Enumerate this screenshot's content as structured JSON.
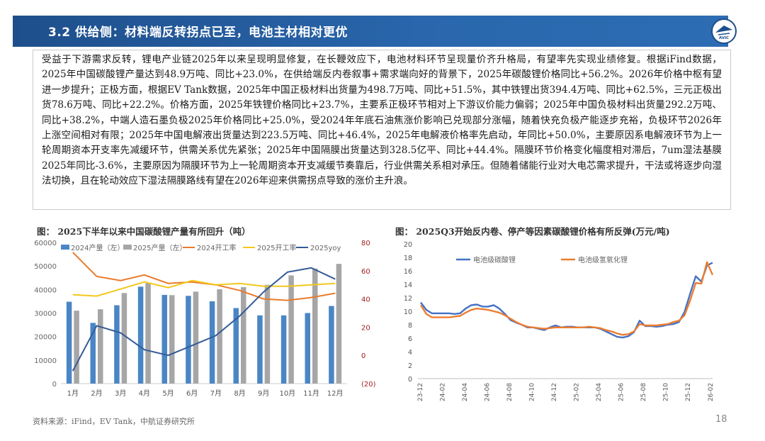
{
  "header": {
    "title": "3.2 供给侧：材料端反转拐点已至，电池主材相对更优",
    "logo_text": "AVIC"
  },
  "summary": {
    "text": "受益于下游需求反转，锂电产业链2025年以来呈现明显修复，在长鞭效应下，电池材料环节呈现量价齐升格局，有望率先实现业绩修复。根据iFind数据，2025年中国碳酸锂产量达到48.9万吨、同比+23.0%，在供给端反内卷叙事+需求端向好的背景下，2025年碳酸锂价格同比+56.2%。2026年价格中枢有望进一步提升；正极方面，根据EV Tank数据，2025年中国正极材料出货量为498.7万吨、同比+51.5%，其中铁锂出货394.4万吨、同比+62.5%，三元正极出货78.6万吨、同比+22.2%。价格方面，2025年铁锂价格同比+23.7%，主要系正极环节相对上下游议价能力偏弱；2025年中国负极材料出货量292.2万吨、同比+38.2%，中端人造石墨负极2025年价格同比+25.0%，受2024年年底石油焦涨价影响已兑现部分涨幅，随着快充负极产能逐步充裕，负极环节2026年上涨空间相对有限；2025年中国电解液出货量达到223.5万吨、同比+46.4%，2025年电解液价格率先启动，年同比+50.0%，主要原因系电解液环节为上一轮周期资本开支率先减缓环节，供需关系优先紧张；2025年中国隔膜出货量达到328.5亿平、同比+44.4%。隔膜环节价格变化幅度相对滞后，7um湿法基膜2025年同比-3.6%，主要原因为隔膜环节为上一轮周期资本开支减缓节奏靠后，行业供需关系相对承压。但随着储能行业对大电芯需求提升，干法或将逐步向湿法切换，且在轮动效应下湿法隔膜路线有望在2026年迎来供需拐点导致的涨价主升浪。"
  },
  "chart1_title": "图：  2025下半年以来中国碳酸锂产量有所回升（吨）",
  "chart2_title": "图：  2025Q3开始反内卷、停产等因素碳酸锂价格有所反弹(万元/吨)",
  "footer": {
    "source": "资料来源：iFind，EV Tank，中航证券研究所",
    "page": "18"
  },
  "chart_data": [
    {
      "type": "bar",
      "title": "2025下半年以来中国碳酸锂产量有所回升（吨）",
      "categories": [
        "1月",
        "2月",
        "3月",
        "4月",
        "5月",
        "6月",
        "7月",
        "8月",
        "9月",
        "10月",
        "11月",
        "12月"
      ],
      "y_left": {
        "range": [
          0,
          60000
        ],
        "ticks": [
          "0",
          "10000",
          "20000",
          "30000",
          "40000",
          "50000",
          "60000"
        ]
      },
      "y_right": {
        "range": [
          -20,
          80
        ],
        "ticks": [
          "(20)",
          "0",
          "20",
          "40",
          "60",
          "80"
        ]
      },
      "bar_series": [
        {
          "name": "2024产量（左）",
          "color": "#4a86c5",
          "values": [
            34800,
            25800,
            33300,
            41200,
            37700,
            37300,
            35000,
            32100,
            29000,
            29000,
            30000,
            33000
          ]
        },
        {
          "name": "2025产量（左）",
          "color": "#a6a6a6",
          "values": [
            31000,
            31600,
            38500,
            42700,
            37600,
            39100,
            40100,
            41000,
            42000,
            46000,
            48900,
            50900
          ]
        }
      ],
      "line_series": [
        {
          "name": "2024开工率",
          "color": "#ea7b2c",
          "values": [
            73,
            56,
            53,
            57,
            51,
            52,
            50,
            46,
            40,
            39,
            41,
            44
          ]
        },
        {
          "name": "2025开工率",
          "color": "#f2c81d",
          "values": [
            43,
            42,
            47,
            52,
            48,
            53,
            50,
            51,
            49,
            49,
            50,
            51
          ]
        },
        {
          "name": "2025yoy",
          "color": "#345b99",
          "values": [
            -11,
            21,
            16,
            4,
            0,
            7,
            14,
            28,
            45,
            59,
            62,
            54
          ]
        }
      ],
      "legend": [
        "2024产量（左）",
        "2025产量（左）",
        "2024开工率",
        "2025开工率",
        "2025yoy"
      ]
    },
    {
      "type": "line",
      "title": "2025Q3开始反内卷、停产等因素碳酸锂价格有所反弹(万元/吨)",
      "y_range": [
        0,
        20
      ],
      "y_ticks": [
        "0",
        "2",
        "4",
        "6",
        "8",
        "10",
        "12",
        "14",
        "16",
        "18",
        "20"
      ],
      "x_ticks": [
        "23-12",
        "24-02",
        "24-04",
        "24-06",
        "24-08",
        "24-10",
        "24-12",
        "25-02",
        "25-04",
        "25-06",
        "25-08",
        "25-10",
        "25-12",
        "26-02"
      ],
      "series": [
        {
          "name": "电池级碳酸锂",
          "color": "#4472c4",
          "values": [
            11.3,
            10.2,
            9.7,
            9.7,
            9.7,
            9.7,
            9.6,
            9.7,
            10.4,
            10.9,
            11.0,
            10.7,
            10.7,
            10.9,
            10.4,
            9.6,
            8.7,
            8.3,
            8.0,
            7.6,
            7.6,
            7.4,
            7.2,
            7.6,
            7.9,
            7.6,
            7.7,
            7.7,
            7.6,
            7.6,
            7.6,
            7.6,
            7.4,
            7.0,
            6.6,
            6.2,
            6.1,
            6.3,
            6.9,
            8.6,
            7.8,
            7.8,
            7.7,
            7.8,
            8.0,
            8.1,
            8.4,
            9.9,
            12.6,
            15.2,
            14.4,
            16.8,
            17.2
          ]
        },
        {
          "name": "电池级氢氧化锂",
          "color": "#ed7d31",
          "values": [
            10.9,
            9.6,
            9.1,
            9.1,
            9.1,
            9.1,
            9.2,
            9.3,
            9.8,
            10.2,
            10.4,
            10.3,
            10.2,
            10.0,
            9.8,
            9.4,
            8.9,
            8.4,
            8.0,
            7.7,
            7.6,
            7.5,
            7.4,
            7.5,
            7.6,
            7.6,
            7.6,
            7.6,
            7.6,
            7.6,
            7.7,
            7.6,
            7.5,
            7.2,
            7.0,
            6.7,
            6.5,
            6.6,
            7.0,
            8.1,
            7.9,
            7.9,
            7.9,
            8.0,
            8.1,
            8.4,
            8.6,
            9.4,
            11.6,
            14.2,
            14.1,
            17.3,
            15.4
          ]
        }
      ],
      "legend": [
        "电池级碳酸锂",
        "电池级氢氧化锂"
      ]
    }
  ]
}
